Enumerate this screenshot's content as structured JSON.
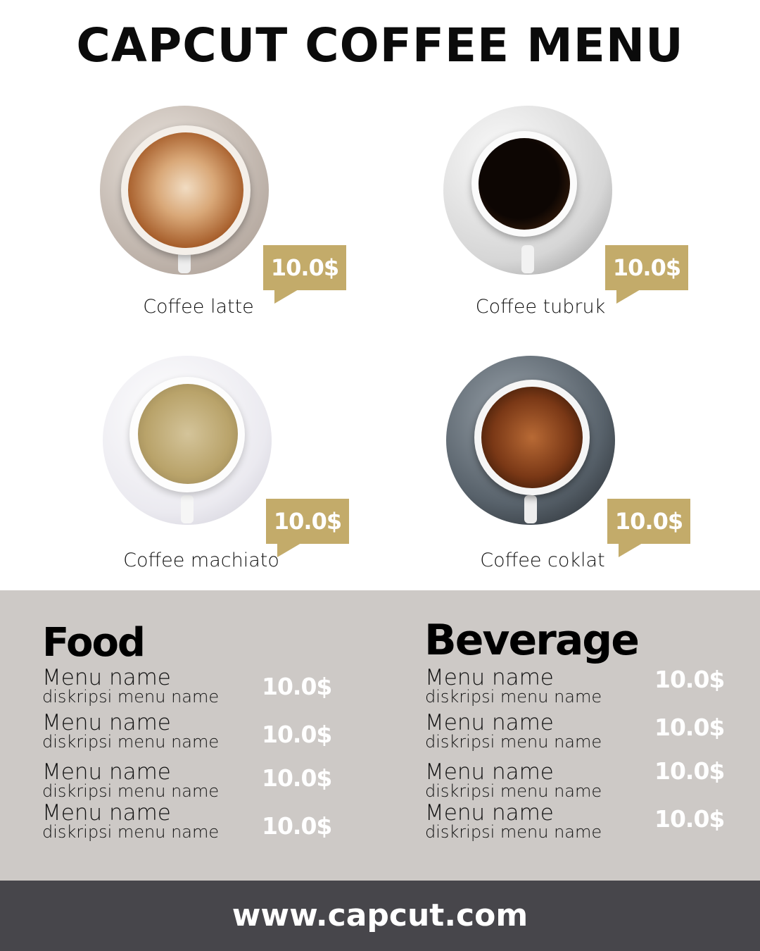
{
  "title": "CAPCUT COFFEE MENU",
  "colors": {
    "accent": "#c3ab6a",
    "band": "#cdc9c6",
    "footer": "#47464b"
  },
  "coffees": [
    {
      "name": "Coffee latte",
      "price": "10.0$"
    },
    {
      "name": "Coffee tubruk",
      "price": "10.0$"
    },
    {
      "name": "Coffee machiato",
      "price": "10.0$"
    },
    {
      "name": "Coffee coklat",
      "price": "10.0$"
    }
  ],
  "food": {
    "title": "Food",
    "items": [
      {
        "name": "Menu name",
        "desc": "diskripsi menu name",
        "price": "10.0$"
      },
      {
        "name": "Menu name",
        "desc": "diskripsi menu name",
        "price": "10.0$"
      },
      {
        "name": "Menu name",
        "desc": "diskripsi menu name",
        "price": "10.0$"
      },
      {
        "name": "Menu name",
        "desc": "diskripsi menu name",
        "price": "10.0$"
      }
    ]
  },
  "beverage": {
    "title": "Beverage",
    "items": [
      {
        "name": "Menu name",
        "desc": "diskripsi menu name",
        "price": "10.0$"
      },
      {
        "name": "Menu name",
        "desc": "diskripsi menu name",
        "price": "10.0$"
      },
      {
        "name": "Menu name",
        "desc": "diskripsi menu name",
        "price": "10.0$"
      },
      {
        "name": "Menu name",
        "desc": "diskripsi menu name",
        "price": "10.0$"
      }
    ]
  },
  "footer": "www.capcut.com"
}
